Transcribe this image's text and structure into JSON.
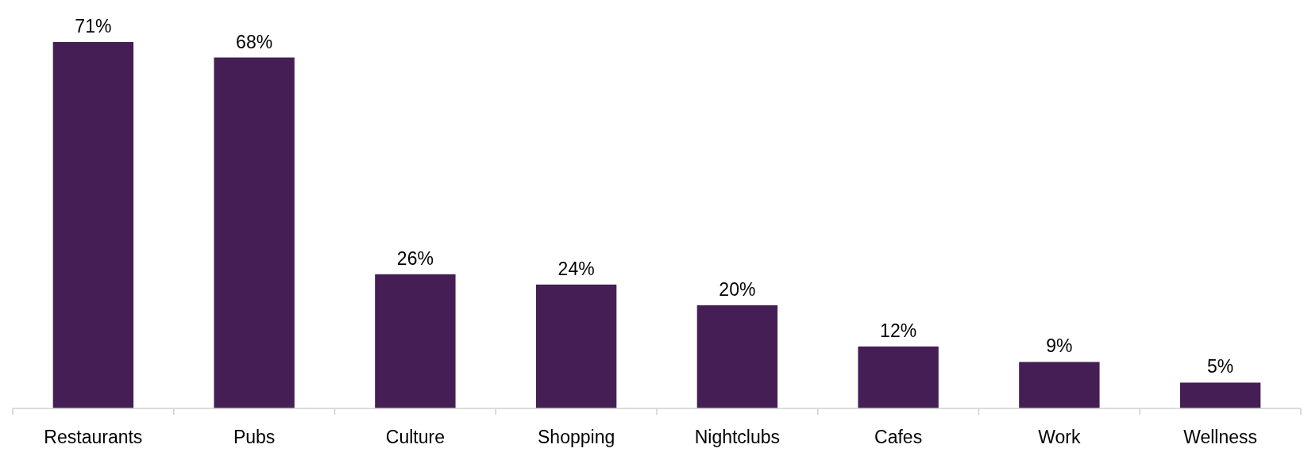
{
  "chart_data": {
    "type": "bar",
    "categories": [
      "Restaurants",
      "Pubs",
      "Culture",
      "Shopping",
      "Nightclubs",
      "Cafes",
      "Work",
      "Wellness"
    ],
    "values": [
      71,
      68,
      26,
      24,
      20,
      12,
      9,
      5
    ],
    "value_labels": [
      "71%",
      "68%",
      "26%",
      "24%",
      "20%",
      "12%",
      "9%",
      "5%"
    ],
    "color": "#441e55"
  }
}
